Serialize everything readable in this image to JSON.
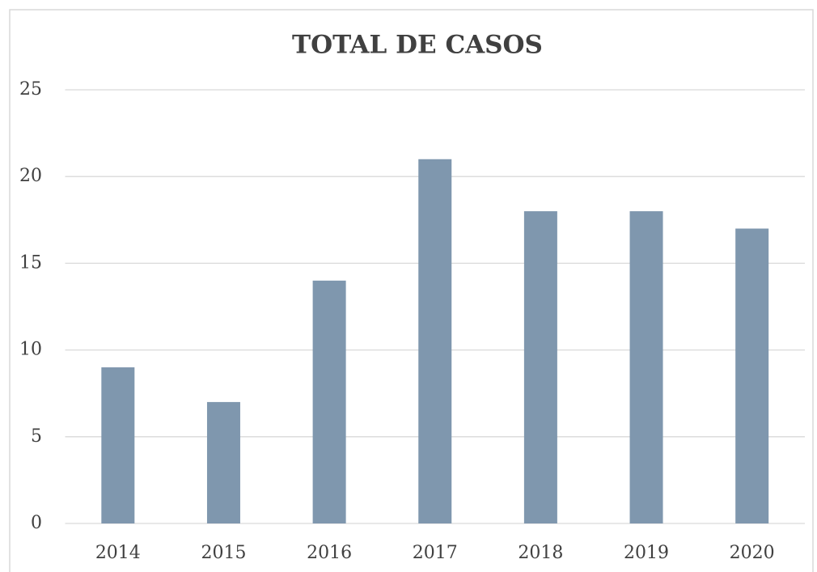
{
  "chart_data": {
    "type": "bar",
    "title": "TOTAL DE CASOS",
    "categories": [
      "2014",
      "2015",
      "2016",
      "2017",
      "2018",
      "2019",
      "2020"
    ],
    "values": [
      9,
      7,
      14,
      21,
      18,
      18,
      17
    ],
    "color": "#7f97ae",
    "ylim": [
      0,
      25
    ],
    "yticks": [
      0,
      5,
      10,
      15,
      20,
      25
    ],
    "grid": true
  }
}
